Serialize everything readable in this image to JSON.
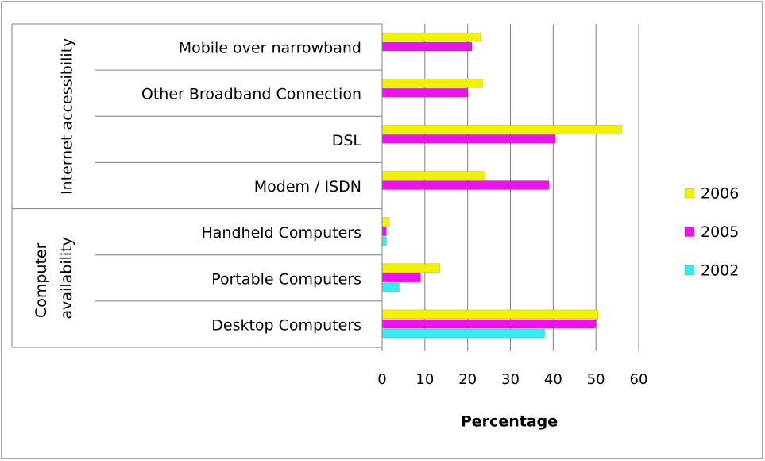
{
  "chart_data": {
    "type": "bar",
    "orientation": "horizontal",
    "groups": [
      {
        "name": "Internet accessibility",
        "categories": [
          "Mobile over narrowband",
          "Other Broadband Connection",
          "DSL",
          "Modem / ISDN"
        ]
      },
      {
        "name": "Computer availability",
        "categories": [
          "Handheld Computers",
          "Portable Computers",
          "Desktop Computers"
        ]
      }
    ],
    "series": [
      {
        "name": "2006",
        "color": "#f2f200",
        "values": [
          23,
          23.5,
          56,
          24,
          1.7,
          13.5,
          50.5
        ]
      },
      {
        "name": "2005",
        "color": "#ee11ee",
        "values": [
          21,
          20,
          40.5,
          39,
          1,
          9,
          50
        ]
      },
      {
        "name": "2002",
        "color": "#33eeee",
        "values": [
          null,
          null,
          null,
          null,
          1,
          4,
          38
        ]
      }
    ],
    "x_label": "Percentage",
    "xlim": [
      0,
      60
    ],
    "xticks": [
      0,
      10,
      20,
      30,
      40,
      50,
      60
    ],
    "grid": true,
    "legend": "right"
  }
}
